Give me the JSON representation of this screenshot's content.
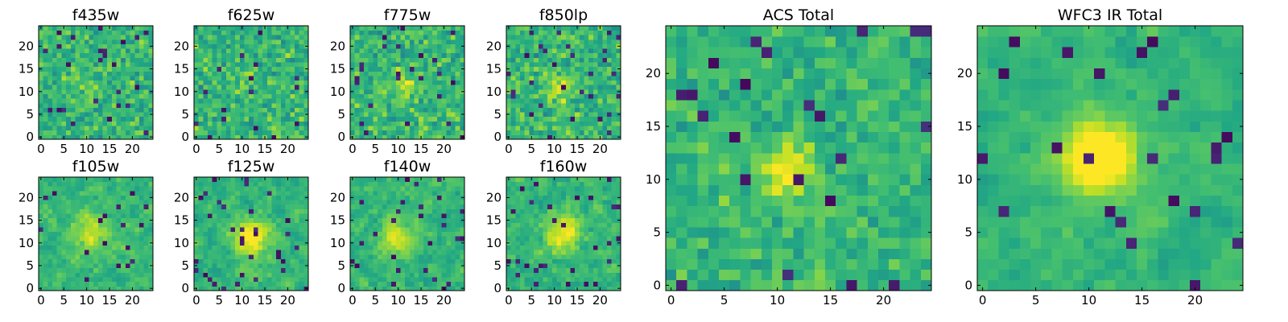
{
  "chart_data": {
    "type": "heatmap",
    "colormap": "viridis",
    "grid": false,
    "panels": [
      {
        "title": "f435w",
        "xlim": [
          -0.5,
          24.5
        ],
        "ylim": [
          -0.5,
          24.5
        ],
        "xticks": [
          0,
          5,
          10,
          15,
          20
        ],
        "yticks": [
          0,
          5,
          10,
          15,
          20
        ],
        "rows": 25,
        "cols": 25,
        "seed": 101,
        "blob": {
          "x": 9,
          "y": 11,
          "amp": 0.05,
          "sigma": 2.5
        },
        "noise": 0.26,
        "dark_fraction": 0.05,
        "smooth": 0.0
      },
      {
        "title": "f625w",
        "xlim": [
          -0.5,
          24.5
        ],
        "ylim": [
          -0.5,
          24.5
        ],
        "xticks": [
          0,
          5,
          10,
          15,
          20
        ],
        "yticks": [
          0,
          5,
          10,
          15,
          20
        ],
        "rows": 25,
        "cols": 25,
        "seed": 202,
        "blob": {
          "x": 12,
          "y": 12,
          "amp": 0.06,
          "sigma": 2.5
        },
        "noise": 0.26,
        "dark_fraction": 0.04,
        "smooth": 0.0
      },
      {
        "title": "f775w",
        "xlim": [
          -0.5,
          24.5
        ],
        "ylim": [
          -0.5,
          24.5
        ],
        "xticks": [
          0,
          5,
          10,
          15,
          20
        ],
        "yticks": [
          0,
          5,
          10,
          15,
          20
        ],
        "rows": 25,
        "cols": 25,
        "seed": 303,
        "blob": {
          "x": 11,
          "y": 11,
          "amp": 0.18,
          "sigma": 2.2
        },
        "noise": 0.25,
        "dark_fraction": 0.04,
        "smooth": 0.0
      },
      {
        "title": "f850lp",
        "xlim": [
          -0.5,
          24.5
        ],
        "ylim": [
          -0.5,
          24.5
        ],
        "xticks": [
          0,
          5,
          10,
          15,
          20
        ],
        "yticks": [
          0,
          5,
          10,
          15,
          20
        ],
        "rows": 25,
        "cols": 25,
        "seed": 404,
        "blob": {
          "x": 11,
          "y": 11,
          "amp": 0.2,
          "sigma": 2.2
        },
        "noise": 0.25,
        "dark_fraction": 0.05,
        "smooth": 0.0
      },
      {
        "title": "f105w",
        "xlim": [
          -0.5,
          24.5
        ],
        "ylim": [
          -0.5,
          24.5
        ],
        "xticks": [
          0,
          5,
          10,
          15,
          20
        ],
        "yticks": [
          0,
          5,
          10,
          15,
          20
        ],
        "rows": 25,
        "cols": 25,
        "seed": 505,
        "blob": {
          "x": 11,
          "y": 12,
          "amp": 0.22,
          "sigma": 3.0
        },
        "noise": 0.2,
        "dark_fraction": 0.03,
        "smooth": 0.45
      },
      {
        "title": "f125w",
        "xlim": [
          -0.5,
          24.5
        ],
        "ylim": [
          -0.5,
          24.5
        ],
        "xticks": [
          0,
          5,
          10,
          15,
          20
        ],
        "yticks": [
          0,
          5,
          10,
          15,
          20
        ],
        "rows": 25,
        "cols": 25,
        "seed": 606,
        "blob": {
          "x": 12,
          "y": 11,
          "amp": 0.38,
          "sigma": 2.8
        },
        "noise": 0.2,
        "dark_fraction": 0.04,
        "smooth": 0.45
      },
      {
        "title": "f140w",
        "xlim": [
          -0.5,
          24.5
        ],
        "ylim": [
          -0.5,
          24.5
        ],
        "xticks": [
          0,
          5,
          10,
          15,
          20
        ],
        "yticks": [
          0,
          5,
          10,
          15,
          20
        ],
        "rows": 25,
        "cols": 25,
        "seed": 707,
        "blob": {
          "x": 10,
          "y": 11,
          "amp": 0.3,
          "sigma": 2.8
        },
        "noise": 0.21,
        "dark_fraction": 0.04,
        "smooth": 0.45
      },
      {
        "title": "f160w",
        "xlim": [
          -0.5,
          24.5
        ],
        "ylim": [
          -0.5,
          24.5
        ],
        "xticks": [
          0,
          5,
          10,
          15,
          20
        ],
        "yticks": [
          0,
          5,
          10,
          15,
          20
        ],
        "rows": 25,
        "cols": 25,
        "seed": 808,
        "blob": {
          "x": 12,
          "y": 12,
          "amp": 0.35,
          "sigma": 2.8
        },
        "noise": 0.21,
        "dark_fraction": 0.04,
        "smooth": 0.45
      },
      {
        "title": "ACS Total",
        "xlim": [
          -0.5,
          24.5
        ],
        "ylim": [
          -0.5,
          24.5
        ],
        "xticks": [
          0,
          5,
          10,
          15,
          20
        ],
        "yticks": [
          0,
          5,
          10,
          15,
          20
        ],
        "rows": 25,
        "cols": 25,
        "seed": 909,
        "blob": {
          "x": 11,
          "y": 11,
          "amp": 0.32,
          "sigma": 1.8
        },
        "noise": 0.22,
        "dark_fraction": 0.04,
        "smooth": 0.1
      },
      {
        "title": "WFC3 IR Total",
        "xlim": [
          -0.5,
          24.5
        ],
        "ylim": [
          -0.5,
          24.5
        ],
        "xticks": [
          0,
          5,
          10,
          15,
          20
        ],
        "yticks": [
          0,
          5,
          10,
          15,
          20
        ],
        "rows": 25,
        "cols": 25,
        "seed": 1010,
        "blob": {
          "x": 11,
          "y": 12,
          "amp": 0.55,
          "sigma": 2.4
        },
        "noise": 0.16,
        "dark_fraction": 0.04,
        "smooth": 0.5
      }
    ]
  }
}
